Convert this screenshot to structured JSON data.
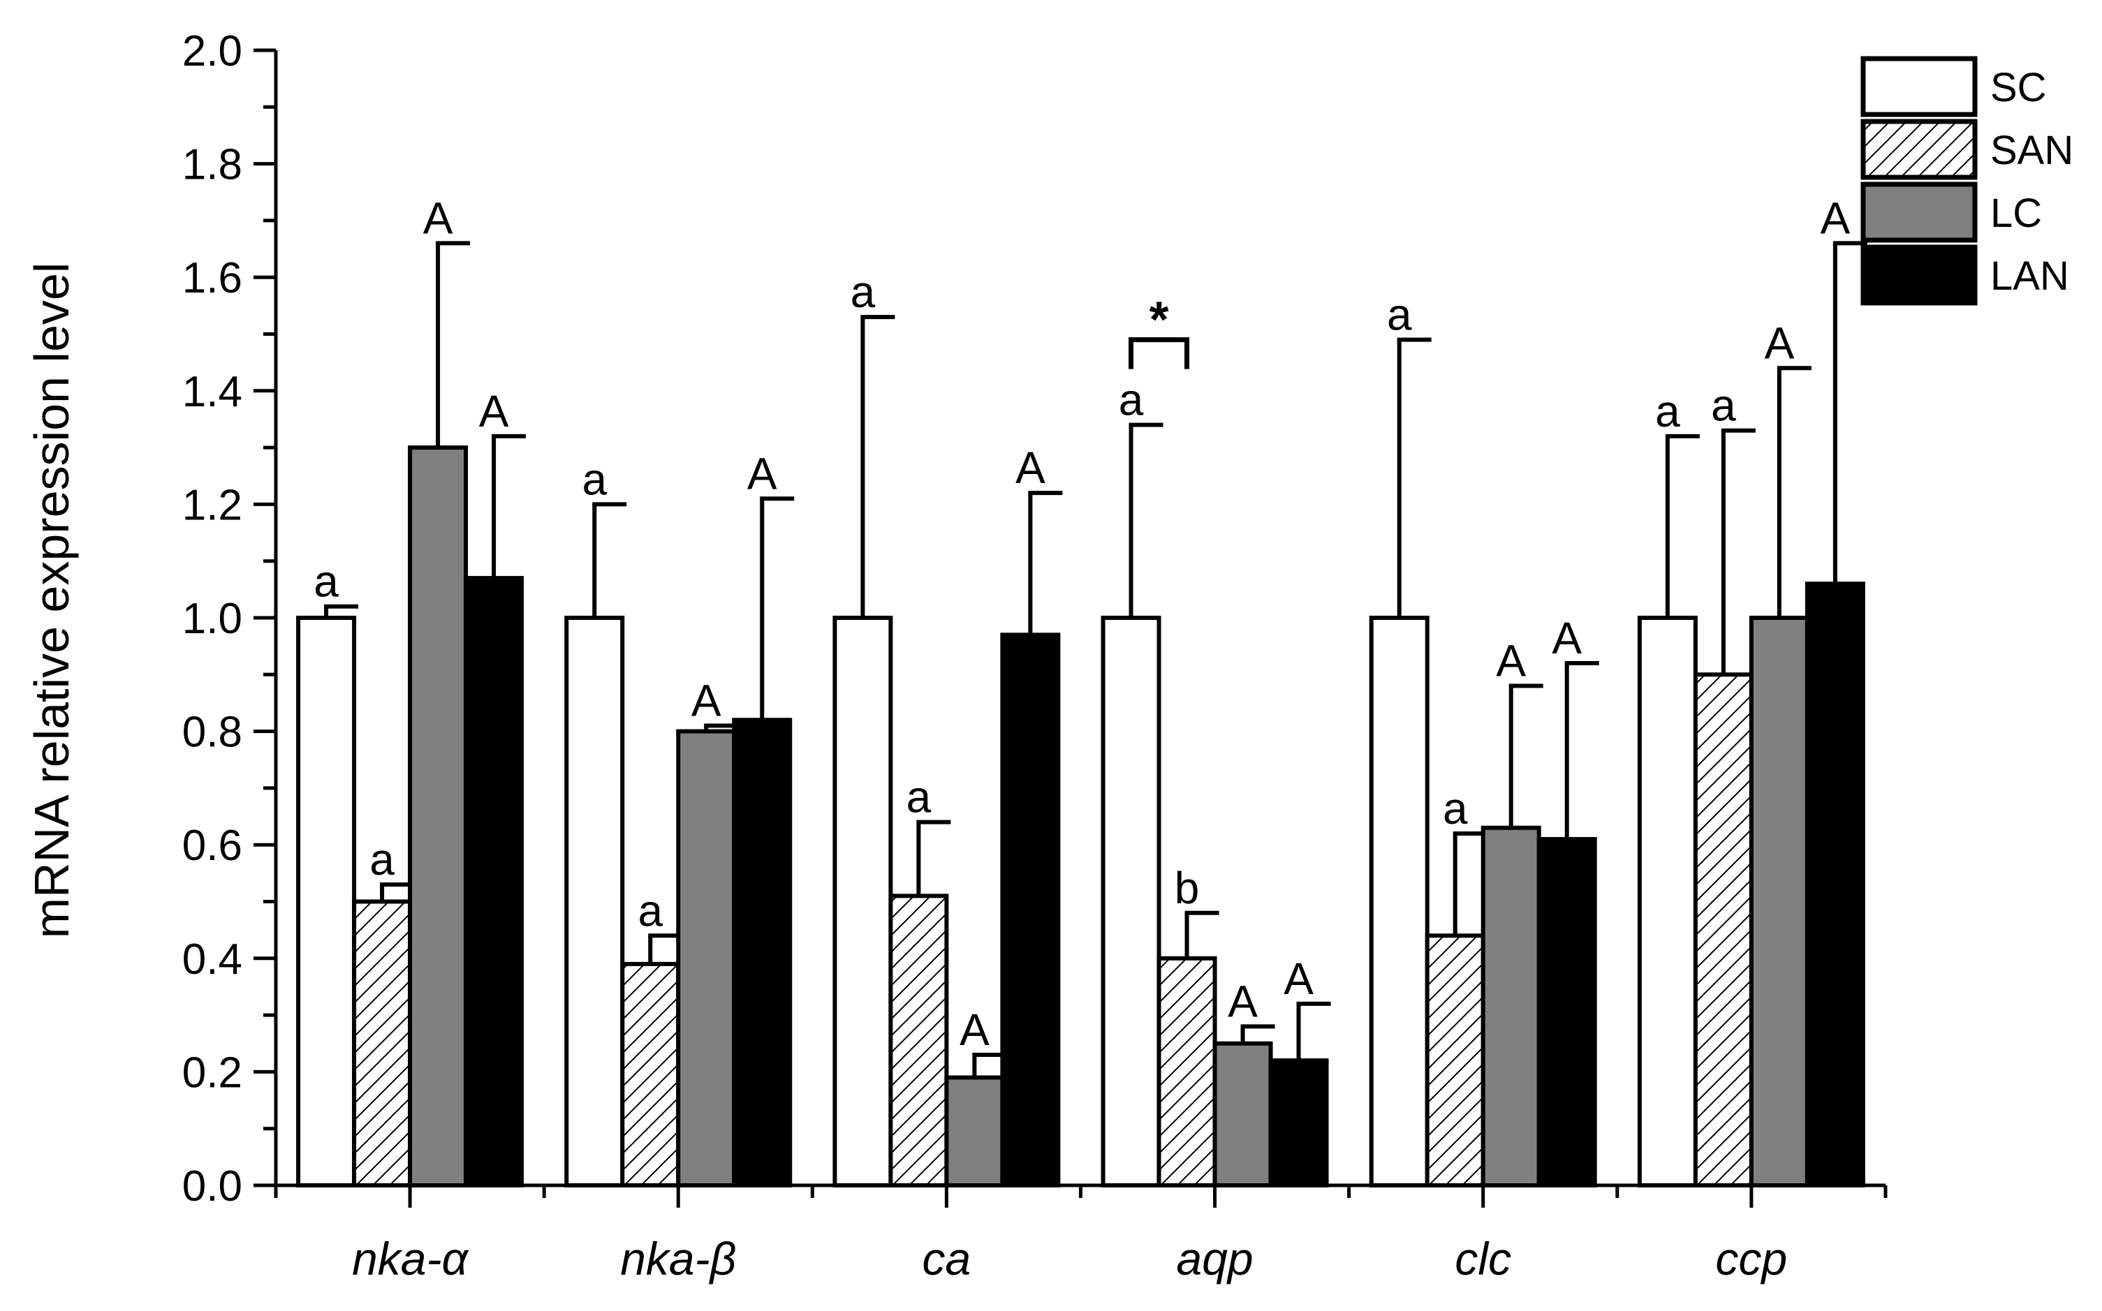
{
  "chart_data": {
    "type": "bar",
    "ylabel": "mRNA relative expression level",
    "xlabel": "",
    "ylim": [
      0,
      2.0
    ],
    "yticks": [
      "0.0",
      "0.2",
      "0.4",
      "0.6",
      "0.8",
      "1.0",
      "1.2",
      "1.4",
      "1.6",
      "1.8",
      "2.0"
    ],
    "categories": [
      "nka-α",
      "nka-β",
      "ca",
      "aqp",
      "clc",
      "ccp"
    ],
    "legend_position": "top-right",
    "series": [
      {
        "name": "SC",
        "pattern": "white",
        "values": [
          1.0,
          1.0,
          1.0,
          1.0,
          1.0,
          1.0
        ],
        "errors": [
          0.02,
          0.2,
          0.53,
          0.34,
          0.49,
          0.32
        ],
        "labels": [
          "a",
          "a",
          "a",
          "a",
          "a",
          "a"
        ]
      },
      {
        "name": "SAN",
        "pattern": "hatched",
        "values": [
          0.5,
          0.39,
          0.51,
          0.4,
          0.44,
          0.9
        ],
        "errors": [
          0.03,
          0.05,
          0.13,
          0.08,
          0.18,
          0.43
        ],
        "labels": [
          "a",
          "a",
          "a",
          "b",
          "a",
          "a"
        ]
      },
      {
        "name": "LC",
        "pattern": "gray",
        "values": [
          1.3,
          0.8,
          0.19,
          0.25,
          0.63,
          1.0
        ],
        "errors": [
          0.36,
          0.01,
          0.04,
          0.03,
          0.25,
          0.44
        ],
        "labels": [
          "A",
          "A",
          "A",
          "A",
          "A",
          "A"
        ]
      },
      {
        "name": "LAN",
        "pattern": "black",
        "values": [
          1.07,
          0.82,
          0.97,
          0.22,
          0.61,
          1.06
        ],
        "errors": [
          0.25,
          0.39,
          0.25,
          0.1,
          0.31,
          0.6
        ],
        "labels": [
          "A",
          "A",
          "A",
          "A",
          "A",
          "A"
        ]
      }
    ],
    "annotations": [
      {
        "text": "*",
        "category": "aqp",
        "y": 1.49
      }
    ],
    "colors": {
      "SC": "#ffffff",
      "SAN": "#ffffff",
      "LC": "#808080",
      "LAN": "#000000",
      "stroke": "#000000"
    }
  }
}
